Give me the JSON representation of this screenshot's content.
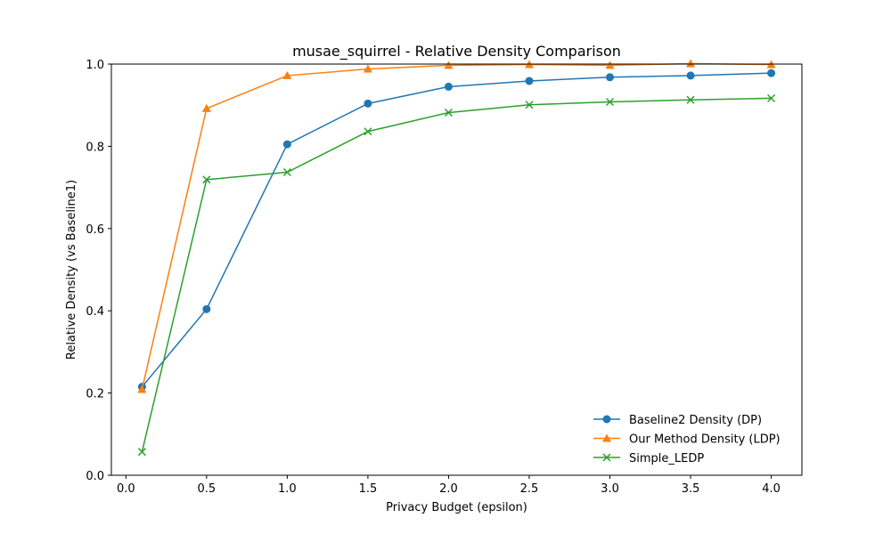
{
  "chart_data": {
    "type": "line",
    "title": "musae_squirrel - Relative Density Comparison",
    "xlabel": "Privacy Budget (epsilon)",
    "ylabel": "Relative Density (vs Baseline1)",
    "xlim": [
      -0.09,
      4.19
    ],
    "ylim": [
      0.0,
      1.0
    ],
    "xticks": [
      "0.0",
      "0.5",
      "1.0",
      "1.5",
      "2.0",
      "2.5",
      "3.0",
      "3.5",
      "4.0"
    ],
    "yticks": [
      "0.0",
      "0.2",
      "0.4",
      "0.6",
      "0.8",
      "1.0"
    ],
    "x": [
      0.1,
      0.5,
      1.0,
      1.5,
      2.0,
      2.5,
      3.0,
      3.5,
      4.0
    ],
    "grid": false,
    "legend_position": "lower-right",
    "series": [
      {
        "name": "Baseline2 Density (DP)",
        "color": "#1f77b4",
        "marker": "circle",
        "values": [
          0.215,
          0.404,
          0.805,
          0.904,
          0.945,
          0.959,
          0.968,
          0.972,
          0.978
        ]
      },
      {
        "name": "Our Method Density (LDP)",
        "color": "#ff7f0e",
        "marker": "triangle",
        "values": [
          0.209,
          0.892,
          0.972,
          0.988,
          0.997,
          0.999,
          0.997,
          1.001,
          0.999
        ]
      },
      {
        "name": "Simple_LEDP",
        "color": "#2ca02c",
        "marker": "x",
        "values": [
          0.057,
          0.719,
          0.737,
          0.836,
          0.882,
          0.901,
          0.908,
          0.913,
          0.917
        ]
      }
    ]
  }
}
